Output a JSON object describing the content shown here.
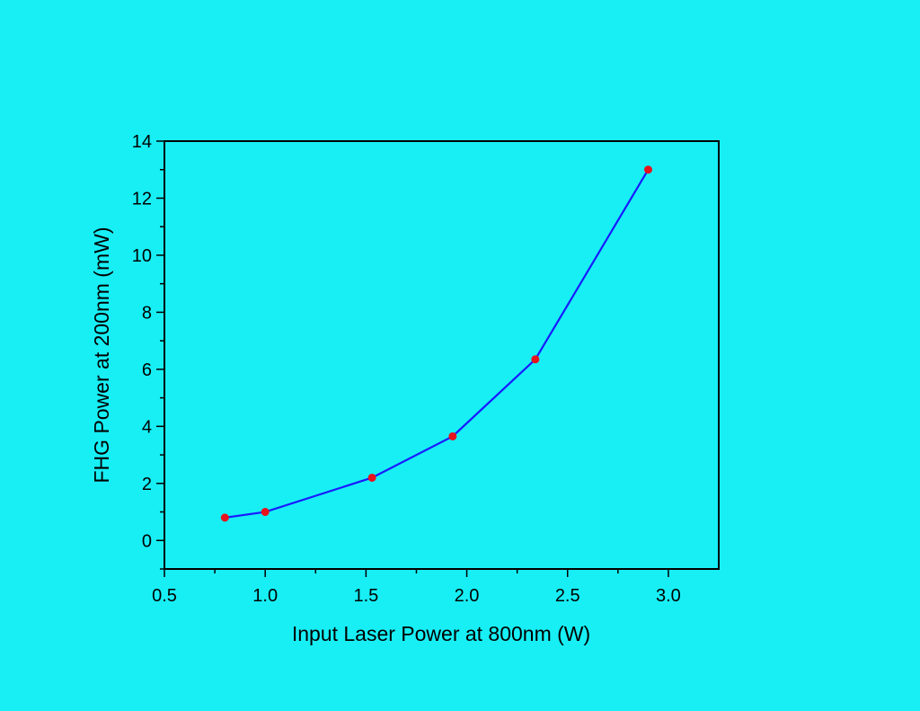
{
  "colors": {
    "background": "#17eff5",
    "line": "#1a1aff",
    "marker": "#e8121c",
    "axis": "#000000"
  },
  "chart_data": {
    "type": "line",
    "title": "",
    "xlabel": "Input Laser Power at 800nm (W)",
    "ylabel": "FHG Power at 200nm (mW)",
    "xlim": [
      0.5,
      3.25
    ],
    "ylim": [
      -1,
      14
    ],
    "xticks": [
      0.5,
      1.0,
      1.5,
      2.0,
      2.5,
      3.0
    ],
    "xtick_labels": [
      "0.5",
      "1.0",
      "1.5",
      "2.0",
      "2.5",
      "3.0"
    ],
    "yticks": [
      0,
      2,
      4,
      6,
      8,
      10,
      12,
      14
    ],
    "ytick_labels": [
      "0",
      "2",
      "4",
      "6",
      "8",
      "10",
      "12",
      "14"
    ],
    "grid": false,
    "series": [
      {
        "x": [
          0.8,
          1.0,
          1.53,
          1.93,
          2.34,
          2.9
        ],
        "y": [
          0.8,
          1.0,
          2.2,
          3.65,
          6.35,
          13.0
        ]
      }
    ]
  }
}
